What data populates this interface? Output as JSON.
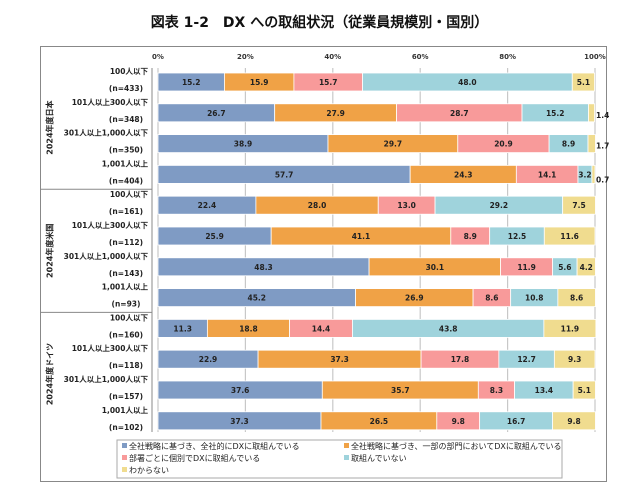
{
  "title": "図表 1-2　DX への取組状況（従業員規模別・国別）",
  "chart_data": {
    "type": "bar",
    "orientation": "horizontal",
    "stacked": true,
    "x_ticks": [
      "0%",
      "20%",
      "40%",
      "60%",
      "80%",
      "100%"
    ],
    "xlim": [
      0,
      100
    ],
    "grid": true,
    "legend_position": "bottom",
    "series": [
      {
        "name": "全社戦略に基づき、全社的にDXに取組んでいる",
        "color": "#7f9bc4"
      },
      {
        "name": "全社戦略に基づき、一部の部門においてDXに取組んでいる",
        "color": "#f0a246"
      },
      {
        "name": "部署ごとに個別でDXに取組んでいる",
        "color": "#f89a9a"
      },
      {
        "name": "取組んでいない",
        "color": "#9fd3dc"
      },
      {
        "name": "わからない",
        "color": "#f0dc8f"
      }
    ],
    "groups": [
      {
        "label": "2024年度日本",
        "rows": [
          {
            "label": "100人以下",
            "n": "(n=433)",
            "values": [
              15.2,
              15.9,
              15.7,
              48.0,
              5.1
            ]
          },
          {
            "label": "101人以上300人以下",
            "n": "(n=348)",
            "values": [
              26.7,
              27.9,
              28.7,
              15.2,
              1.4
            ]
          },
          {
            "label": "301人以上1,000人以下",
            "n": "(n=350)",
            "values": [
              38.9,
              29.7,
              20.9,
              8.9,
              1.7
            ]
          },
          {
            "label": "1,001人以上",
            "n": "(n=404)",
            "values": [
              57.7,
              24.3,
              14.1,
              3.2,
              0.7
            ]
          }
        ]
      },
      {
        "label": "2024年度米国",
        "rows": [
          {
            "label": "100人以下",
            "n": "(n=161)",
            "values": [
              22.4,
              28.0,
              13.0,
              29.2,
              7.5
            ]
          },
          {
            "label": "101人以上300人以下",
            "n": "(n=112)",
            "values": [
              25.9,
              41.1,
              8.9,
              12.5,
              11.6
            ]
          },
          {
            "label": "301人以上1,000人以下",
            "n": "(n=143)",
            "values": [
              48.3,
              30.1,
              11.9,
              5.6,
              4.2
            ]
          },
          {
            "label": "1,001人以上",
            "n": "(n=93)",
            "values": [
              45.2,
              26.9,
              8.6,
              10.8,
              8.6
            ]
          }
        ]
      },
      {
        "label": "2024年度ドイツ",
        "rows": [
          {
            "label": "100人以下",
            "n": "(n=160)",
            "values": [
              11.3,
              18.8,
              14.4,
              43.8,
              11.9
            ]
          },
          {
            "label": "101人以上300人以下",
            "n": "(n=118)",
            "values": [
              22.9,
              37.3,
              17.8,
              12.7,
              9.3
            ]
          },
          {
            "label": "301人以上1,000人以下",
            "n": "(n=157)",
            "values": [
              37.6,
              35.7,
              8.3,
              13.4,
              5.1
            ]
          },
          {
            "label": "1,001人以上",
            "n": "(n=102)",
            "values": [
              37.3,
              26.5,
              9.8,
              16.7,
              9.8
            ]
          }
        ]
      }
    ]
  }
}
